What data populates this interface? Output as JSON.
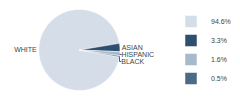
{
  "chart_data": {
    "type": "pie",
    "categories": [
      "WHITE",
      "ASIAN",
      "HISPANIC",
      "BLACK"
    ],
    "values": [
      94.6,
      3.3,
      1.6,
      0.5
    ],
    "value_labels": [
      "94.6%",
      "3.3%",
      "1.6%",
      "0.5%"
    ],
    "colors": [
      "#d5dde8",
      "#2d5070",
      "#a8b9cb",
      "#4a6b87"
    ],
    "legend": "right"
  }
}
